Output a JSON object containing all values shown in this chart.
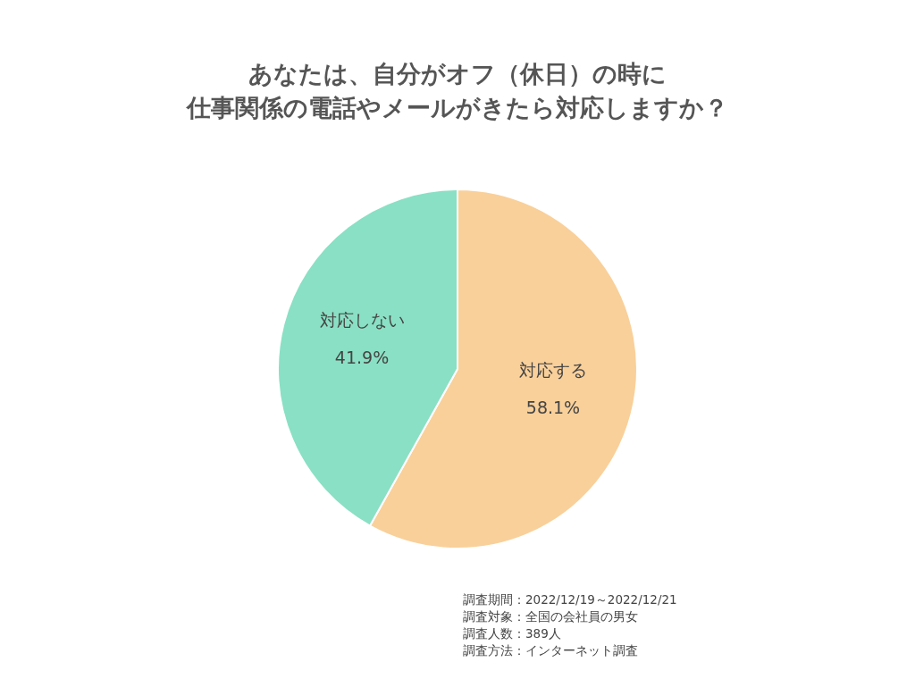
{
  "chart_data": {
    "type": "pie",
    "title": "あなたは、自分がオフ（休日）の時に",
    "subtitle": "仕事関係の電話やメールがきたら対応しますか？",
    "categories": [
      "対応する",
      "対応しない"
    ],
    "values": [
      58.1,
      41.9
    ],
    "colors": [
      "#f9d09a",
      "#8ae0c4"
    ],
    "value_labels": [
      "58.1%",
      "41.9%"
    ],
    "annotations": [
      "調査期間：2022/12/19～2022/12/21",
      "調査対象：全国の会社員の男女",
      "調査人数：389人",
      "調査方法：インターネット調査"
    ]
  }
}
